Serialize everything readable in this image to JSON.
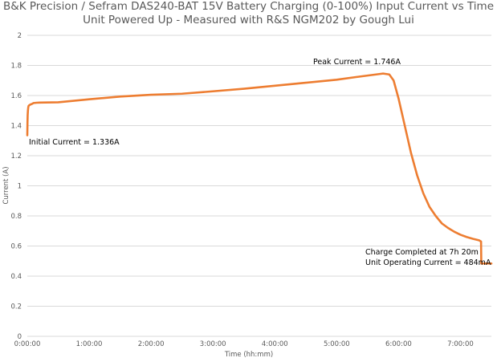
{
  "chart_data": {
    "type": "line",
    "title": "B&K Precision / Sefram DAS240-BAT 15V Battery Charging (0-100%) Input Current vs Time",
    "subtitle": "Unit Powered Up - Measured with R&S NGM202 by Gough Lui",
    "xlabel": "Time (hh:mm)",
    "ylabel": "Current (A)",
    "xlim_hours": [
      0,
      7.5
    ],
    "ylim": [
      0,
      2
    ],
    "y_ticks": [
      0,
      0.2,
      0.4,
      0.6,
      0.8,
      1,
      1.2,
      1.4,
      1.6,
      1.8,
      2
    ],
    "y_tick_labels": [
      "0",
      "0.2",
      "0.4",
      "0.6",
      "0.8",
      "1",
      "1.2",
      "1.4",
      "1.6",
      "1.8",
      "2"
    ],
    "x_ticks_hours": [
      0,
      1,
      2,
      3,
      4,
      5,
      6,
      7
    ],
    "x_tick_labels": [
      "0:00:00",
      "1:00:00",
      "2:00:00",
      "3:00:00",
      "4:00:00",
      "5:00:00",
      "6:00:00",
      "7:00:00"
    ],
    "grid": true,
    "legend": "none",
    "series": [
      {
        "name": "Input Current",
        "color": "#ed7d31",
        "x_hours": [
          0,
          0.003,
          0.006,
          0.01,
          0.015,
          0.02,
          0.03,
          0.05,
          0.08,
          0.1,
          0.15,
          0.2,
          0.5,
          1.0,
          1.5,
          2.0,
          2.5,
          3.0,
          3.5,
          4.0,
          4.5,
          5.0,
          5.3,
          5.6,
          5.75,
          5.85,
          5.92,
          6.0,
          6.1,
          6.2,
          6.3,
          6.4,
          6.5,
          6.6,
          6.7,
          6.8,
          6.9,
          7.0,
          7.1,
          7.2,
          7.3,
          7.333,
          7.337,
          7.4,
          7.5
        ],
        "values": [
          1.336,
          1.42,
          1.47,
          1.5,
          1.52,
          1.53,
          1.535,
          1.54,
          1.545,
          1.55,
          1.552,
          1.553,
          1.555,
          1.575,
          1.593,
          1.605,
          1.612,
          1.628,
          1.645,
          1.665,
          1.685,
          1.705,
          1.722,
          1.738,
          1.746,
          1.74,
          1.7,
          1.58,
          1.4,
          1.22,
          1.07,
          0.95,
          0.86,
          0.8,
          0.75,
          0.72,
          0.695,
          0.675,
          0.66,
          0.648,
          0.638,
          0.63,
          0.484,
          0.484,
          0.484
        ]
      }
    ],
    "annotations": [
      {
        "text": "Initial Current = 1.336A"
      },
      {
        "text": "Peak Current = 1.746A"
      },
      {
        "text": "Charge Completed at 7h 20m"
      },
      {
        "text": "Unit Operating Current = 484mA"
      }
    ]
  }
}
